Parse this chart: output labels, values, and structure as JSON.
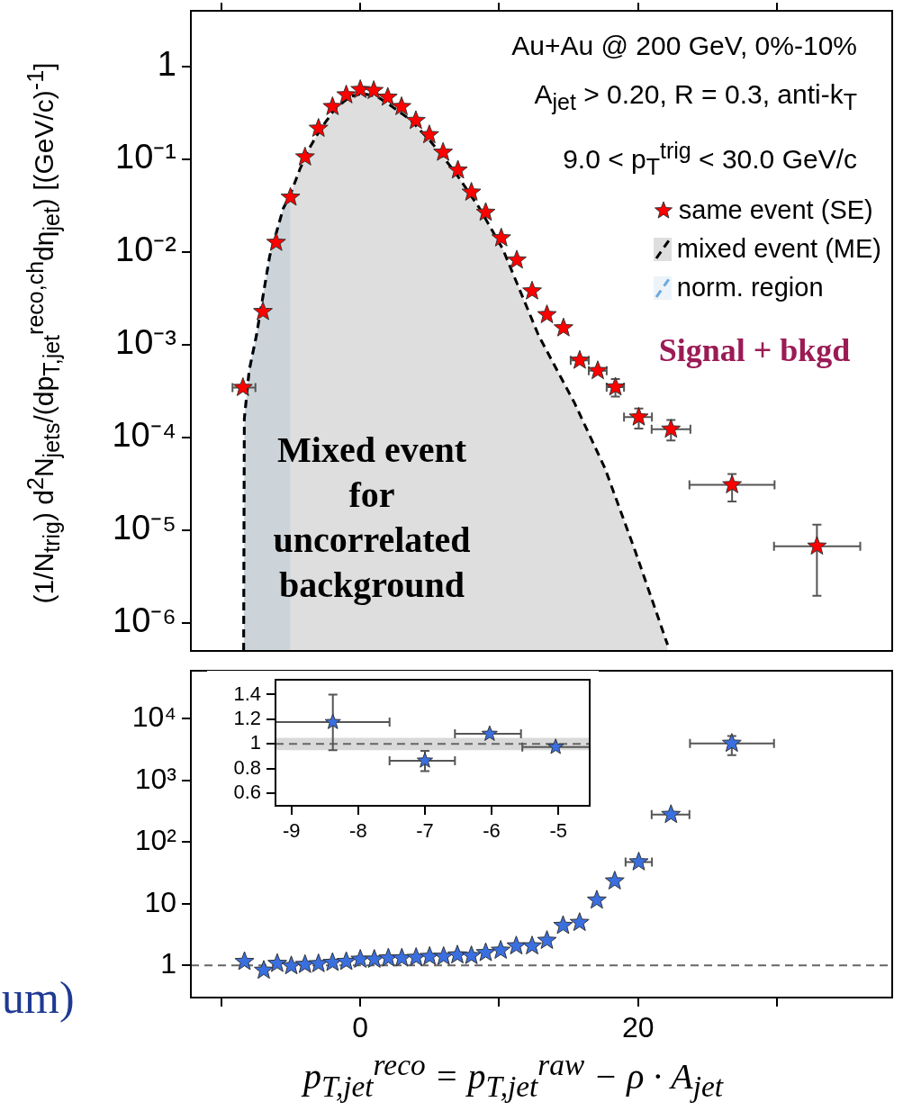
{
  "chart_data": [
    {
      "type": "scatter",
      "ylabel": "(1/N$_{trig}$) d$^{2}$N$_{jets}$/(dp$_{T,jet}$$^{reco,ch}$dη$_{jet}$)  [(GeV/c)$^{-1}$]",
      "annotations": [
        "Au+Au @ 200 GeV, 0%-10%",
        "A$_{jet}$ > 0.20, R = 0.3, anti-k$_{T}$",
        "9.0 < p$_{T}$$^{trig}$ < 30.0 GeV/c",
        "Signal + bkgd",
        "Mixed event for uncorrelated background"
      ],
      "xlim": [
        -12.2,
        38.3
      ],
      "ylim": [
        5e-07,
        4
      ],
      "xticks": [
        {
          "value": -10,
          "label": null
        },
        {
          "value": 0,
          "label": null
        },
        {
          "value": 10,
          "label": null
        },
        {
          "value": 20,
          "label": null
        },
        {
          "value": 30,
          "label": null
        }
      ],
      "yticks": [
        {
          "value": 1e-06,
          "label": "10⁻⁶"
        },
        {
          "value": 1e-05,
          "label": "10⁻⁵"
        },
        {
          "value": 0.0001,
          "label": "10⁻⁴"
        },
        {
          "value": 0.001,
          "label": "10⁻³"
        },
        {
          "value": 0.01,
          "label": "10⁻²"
        },
        {
          "value": 0.1,
          "label": "10⁻¹"
        },
        1
      ],
      "log": "y",
      "tick_labels": "y",
      "legend": "top right",
      "series": [
        {
          "name": "same event (SE)",
          "type": "scatter",
          "marker": "star",
          "color": "#ff0000",
          "x": [
            -8.45,
            -7.01,
            -6.06,
            -5.03,
            -3.98,
            -3.01,
            -2.0,
            -1.01,
            0,
            0.97,
            1.98,
            2.97,
            4.0,
            4.97,
            5.96,
            7.03,
            8.0,
            9.03,
            10.15,
            11.27,
            12.37,
            13.44,
            14.63,
            15.8,
            17.1,
            18.37,
            20.05,
            22.37,
            26.77,
            32.88
          ],
          "values": [
            0.000346,
            0.00228,
            0.0127,
            0.039,
            0.106,
            0.216,
            0.37,
            0.495,
            0.565,
            0.552,
            0.467,
            0.37,
            0.262,
            0.184,
            0.119,
            0.0765,
            0.0442,
            0.0268,
            0.0142,
            0.0082,
            0.0038,
            0.00211,
            0.00152,
            0.00068,
            0.000526,
            0.00035,
            0.000166,
            0.000123,
            3.09e-05,
            6.73e-06
          ],
          "errors": [
            null,
            null,
            null,
            null,
            null,
            null,
            null,
            null,
            null,
            null,
            null,
            null,
            null,
            null,
            null,
            null,
            null,
            null,
            null,
            null,
            null,
            null,
            null,
            null,
            null,
            [
              0.000276,
              0.000428
            ],
            [
              0.000125,
              0.000206
            ],
            [
              9.3e-05,
              0.000155
            ],
            [
              2.05e-05,
              4.05e-05
            ],
            [
              1.97e-06,
              1.15e-05
            ]
          ],
          "xerrors": [
            [
              -9.2,
              -7.55
            ],
            null,
            null,
            null,
            null,
            null,
            null,
            null,
            null,
            null,
            null,
            null,
            null,
            null,
            null,
            null,
            null,
            null,
            null,
            null,
            null,
            null,
            null,
            [
              15.15,
              16.45
            ],
            [
              16.45,
              17.74
            ],
            [
              17.74,
              18.99
            ],
            [
              18.99,
              21.0
            ],
            [
              20.98,
              23.77
            ],
            [
              23.7,
              29.83
            ],
            [
              29.79,
              36.0
            ]
          ]
        },
        {
          "name": "mixed event (ME)",
          "type": "area",
          "color": "#000000",
          "line_style": "dashed",
          "x": [
            -8.4,
            -8.35,
            -8.0,
            -7.48,
            -6.52,
            -5.55,
            -5.03,
            -4.37,
            -3.72,
            -2.86,
            -1.79,
            -0.71,
            0.15,
            1.23,
            2.3,
            3.6,
            5.1,
            6.82,
            8.54,
            10.26,
            12.84,
            15.42,
            17.61,
            19.79,
            22.13
          ],
          "values": [
            5e-07,
            0.00016,
            0.00053,
            0.00126,
            0.0091,
            0.0295,
            0.042,
            0.077,
            0.128,
            0.213,
            0.356,
            0.477,
            0.514,
            0.475,
            0.37,
            0.268,
            0.154,
            0.073,
            0.0305,
            0.0108,
            0.00126,
            0.000237,
            4.69e-05,
            6e-06,
            5.8e-07
          ]
        },
        {
          "name": "norm. region",
          "type": "area",
          "color": "#6fa8dc",
          "line_style": "dashed",
          "x": [
            -8.4,
            -8.35,
            -8.0,
            -7.48,
            -6.52,
            -5.55,
            -5.03
          ],
          "values": [
            5e-07,
            0.00016,
            0.00053,
            0.00126,
            0.0091,
            0.0295,
            0.042
          ]
        }
      ]
    },
    {
      "type": "scatter",
      "xlabel": "p$_{T,jet}$$^{reco}$ = p$_{T,jet}$$^{raw}$ − ρ · A$_{jet}$",
      "annotations": [
        "um)"
      ],
      "xlim": [
        -12.2,
        38.3
      ],
      "ylim": [
        0.3,
        60000
      ],
      "xticks": [
        {
          "value": -10,
          "label": null
        },
        0,
        {
          "value": 10,
          "label": null
        },
        20,
        {
          "value": 30,
          "label": null
        }
      ],
      "yticks": [
        1,
        10,
        {
          "value": 100,
          "label": "10²"
        },
        {
          "value": 1000,
          "label": "10³"
        },
        {
          "value": 10000,
          "label": "10⁴"
        }
      ],
      "log": "y",
      "marker": "star",
      "color": "#3a6fe0",
      "x": [
        -8.34,
        -6.95,
        -5.98,
        -4.97,
        -3.98,
        -3.01,
        -2.0,
        -1.01,
        0,
        1.01,
        2.02,
        2.99,
        4.02,
        4.99,
        6.0,
        6.99,
        8.0,
        9.03,
        10.11,
        11.23,
        12.37,
        13.44,
        14.6,
        15.79,
        17.03,
        18.32,
        20.05,
        22.37,
        26.75
      ],
      "values": [
        1.15,
        0.83,
        1.07,
        0.98,
        1.03,
        1.06,
        1.11,
        1.15,
        1.25,
        1.25,
        1.31,
        1.31,
        1.34,
        1.39,
        1.39,
        1.47,
        1.43,
        1.6,
        1.75,
        2.06,
        2.06,
        2.53,
        4.42,
        4.94,
        11.4,
        23.3,
        47.5,
        279,
        3980
      ],
      "errors": [
        null,
        null,
        null,
        null,
        null,
        null,
        null,
        null,
        null,
        null,
        null,
        null,
        null,
        null,
        null,
        null,
        null,
        null,
        null,
        null,
        null,
        null,
        null,
        null,
        null,
        null,
        null,
        null,
        [
          2560,
          5220
        ]
      ],
      "xerrors": [
        null,
        null,
        null,
        null,
        null,
        null,
        null,
        null,
        null,
        null,
        null,
        null,
        null,
        null,
        null,
        null,
        null,
        null,
        null,
        null,
        null,
        null,
        null,
        null,
        null,
        null,
        [
          19.1,
          21.0
        ],
        [
          20.98,
          23.7
        ],
        [
          23.74,
          29.79
        ]
      ],
      "ref_lines": [
        {
          "axis": "y",
          "value": 1,
          "line_style": "dashed",
          "color": "#666666"
        }
      ]
    },
    {
      "type": "scatter",
      "marker": "star",
      "color": "#3a6fe0",
      "x": [
        -8.38,
        -7.0,
        -6.03,
        -5.04
      ],
      "values": [
        1.177,
        0.865,
        1.082,
        0.976
      ],
      "errors": [
        [
          0.95,
          1.4
        ],
        [
          0.78,
          0.945
        ],
        null,
        null
      ],
      "xerrors": [
        [
          -9.24,
          -7.53
        ],
        [
          -7.53,
          -6.55
        ],
        [
          -6.55,
          -5.56
        ],
        [
          -5.54,
          -4.53
        ]
      ],
      "xlim": [
        -9.24,
        -4.53
      ],
      "ylim": [
        0.5,
        1.52
      ],
      "xticks": [
        -9,
        -8,
        -7,
        -6,
        -5
      ],
      "yticks": [
        0.6,
        0.8,
        1,
        1.2,
        1.4
      ],
      "bands": [
        {
          "axis": "y",
          "from": 0.95,
          "to": 1.05,
          "color": "#d9d9d9"
        }
      ],
      "ref_lines": [
        {
          "axis": "y",
          "value": 1,
          "line_style": "dashed",
          "color": "#666666"
        }
      ]
    }
  ]
}
